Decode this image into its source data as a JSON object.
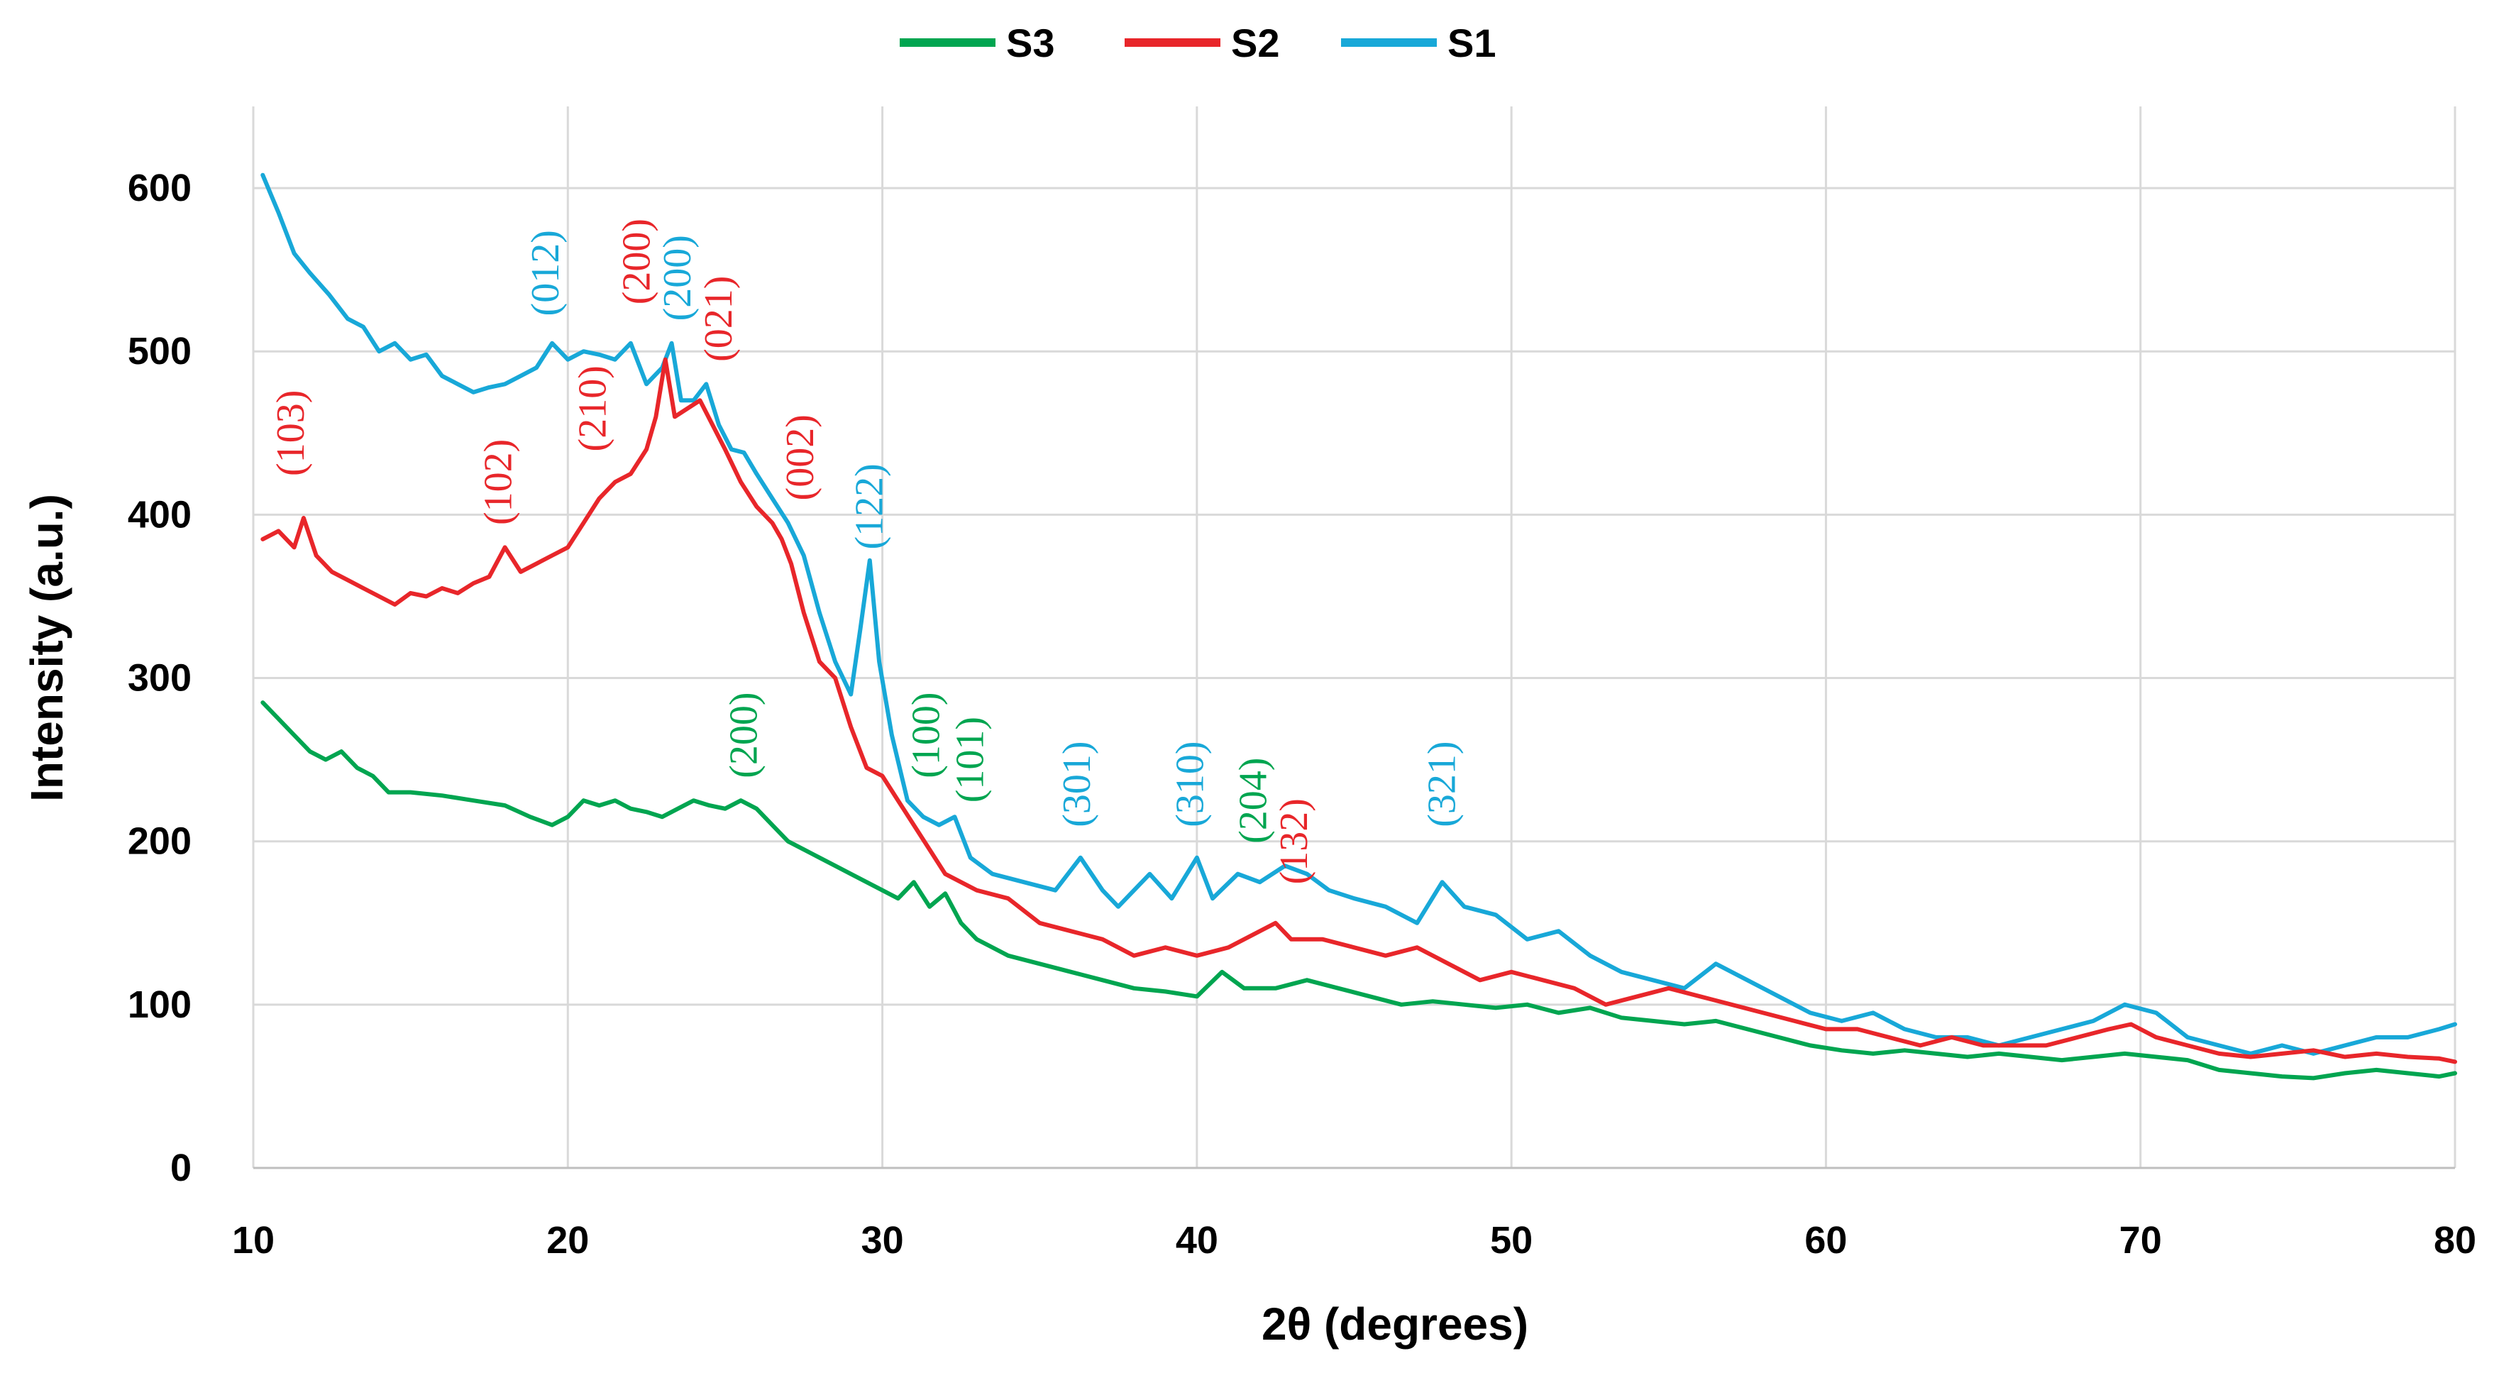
{
  "chart_data": {
    "type": "line",
    "title": "",
    "xlabel": "2θ (degrees)",
    "ylabel": "Intensity (a.u.)",
    "xlim": [
      10,
      80
    ],
    "ylim": [
      0,
      650
    ],
    "xticks": [
      10,
      20,
      30,
      40,
      50,
      60,
      70,
      80
    ],
    "yticks": [
      0,
      100,
      200,
      300,
      400,
      500,
      600
    ],
    "xtick_labels": [
      "10",
      "20",
      "30",
      "40",
      "50",
      "60",
      "70",
      "80"
    ],
    "ytick_labels": [
      "0",
      "100",
      "200",
      "300",
      "400",
      "500",
      "600"
    ],
    "grid": true,
    "legend_position": "top-center",
    "legend": [
      {
        "name": "S3",
        "color": "#00a550"
      },
      {
        "name": "S2",
        "color": "#e8262a"
      },
      {
        "name": "S1",
        "color": "#18a8d8"
      }
    ],
    "series": [
      {
        "name": "S1",
        "color": "#18a8d8",
        "x": [
          10.3,
          10.8,
          11.3,
          11.8,
          12.4,
          13.0,
          13.5,
          14.0,
          14.5,
          15.0,
          15.5,
          16.0,
          16.5,
          17.0,
          17.5,
          18.0,
          18.5,
          19.0,
          19.5,
          20.0,
          20.5,
          21.0,
          21.5,
          22.0,
          22.5,
          23.0,
          23.3,
          23.6,
          24.0,
          24.4,
          24.8,
          25.2,
          25.6,
          26.0,
          26.5,
          27.0,
          27.5,
          28.0,
          28.5,
          29.0,
          29.3,
          29.6,
          29.9,
          30.3,
          30.8,
          31.3,
          31.8,
          32.3,
          32.8,
          33.5,
          34.5,
          35.5,
          36.3,
          37.0,
          37.5,
          38.5,
          39.2,
          40.0,
          40.5,
          41.3,
          42.0,
          42.8,
          43.5,
          44.2,
          45.0,
          46.0,
          47.0,
          47.8,
          48.5,
          49.5,
          50.5,
          51.5,
          52.5,
          53.5,
          54.5,
          55.5,
          56.5,
          57.5,
          58.5,
          59.5,
          60.5,
          61.5,
          62.5,
          63.5,
          64.5,
          65.5,
          66.5,
          67.5,
          68.5,
          69.5,
          70.5,
          71.5,
          72.5,
          73.5,
          74.5,
          75.5,
          76.5,
          77.5,
          78.5,
          79.5,
          80.0
        ],
        "y": [
          608,
          585,
          560,
          548,
          535,
          520,
          515,
          500,
          505,
          495,
          498,
          485,
          480,
          475,
          478,
          480,
          485,
          490,
          505,
          495,
          500,
          498,
          495,
          505,
          480,
          490,
          505,
          470,
          470,
          480,
          455,
          440,
          438,
          425,
          410,
          395,
          375,
          340,
          310,
          290,
          330,
          372,
          310,
          265,
          225,
          215,
          210,
          215,
          190,
          180,
          175,
          170,
          190,
          170,
          160,
          180,
          165,
          190,
          165,
          180,
          175,
          185,
          180,
          170,
          165,
          160,
          150,
          175,
          160,
          155,
          140,
          145,
          130,
          120,
          115,
          110,
          125,
          115,
          105,
          95,
          90,
          95,
          85,
          80,
          80,
          75,
          80,
          85,
          90,
          100,
          95,
          80,
          75,
          70,
          75,
          70,
          75,
          80,
          80,
          85,
          88
        ]
      },
      {
        "name": "S2",
        "color": "#e8262a",
        "x": [
          10.3,
          10.8,
          11.3,
          11.6,
          12.0,
          12.5,
          13.0,
          13.5,
          14.0,
          14.5,
          15.0,
          15.5,
          16.0,
          16.5,
          17.0,
          17.5,
          18.0,
          18.5,
          19.0,
          19.5,
          20.0,
          20.5,
          21.0,
          21.5,
          22.0,
          22.5,
          22.8,
          23.1,
          23.4,
          23.8,
          24.2,
          24.6,
          25.0,
          25.5,
          26.0,
          26.5,
          26.8,
          27.1,
          27.5,
          28.0,
          28.5,
          29.0,
          29.5,
          30.0,
          30.5,
          31.0,
          31.5,
          32.0,
          32.5,
          33.0,
          34.0,
          35.0,
          36.0,
          37.0,
          38.0,
          39.0,
          40.0,
          41.0,
          42.0,
          42.5,
          43.0,
          44.0,
          45.0,
          46.0,
          47.0,
          48.0,
          49.0,
          50.0,
          51.0,
          52.0,
          53.0,
          54.0,
          55.0,
          56.0,
          57.0,
          58.0,
          59.0,
          60.0,
          61.0,
          62.0,
          63.0,
          64.0,
          65.0,
          66.0,
          67.0,
          68.0,
          69.0,
          69.7,
          70.5,
          71.5,
          72.5,
          73.5,
          74.5,
          75.5,
          76.5,
          77.5,
          78.5,
          79.5,
          80.0
        ],
        "y": [
          385,
          390,
          380,
          398,
          375,
          365,
          360,
          355,
          350,
          345,
          352,
          350,
          355,
          352,
          358,
          362,
          380,
          365,
          370,
          375,
          380,
          395,
          410,
          420,
          425,
          440,
          460,
          495,
          460,
          465,
          470,
          455,
          440,
          420,
          405,
          395,
          385,
          370,
          340,
          310,
          300,
          270,
          245,
          240,
          225,
          210,
          195,
          180,
          175,
          170,
          165,
          150,
          145,
          140,
          130,
          135,
          130,
          135,
          145,
          150,
          140,
          140,
          135,
          130,
          135,
          125,
          115,
          120,
          115,
          110,
          100,
          105,
          110,
          105,
          100,
          95,
          90,
          85,
          85,
          80,
          75,
          80,
          75,
          75,
          75,
          80,
          85,
          88,
          80,
          75,
          70,
          68,
          70,
          72,
          68,
          70,
          68,
          67,
          65
        ]
      },
      {
        "name": "S3",
        "color": "#00a550",
        "x": [
          10.3,
          10.8,
          11.3,
          11.8,
          12.3,
          12.8,
          13.3,
          13.8,
          14.3,
          15.0,
          16.0,
          17.0,
          18.0,
          18.8,
          19.5,
          20.0,
          20.5,
          21.0,
          21.5,
          22.0,
          22.5,
          23.0,
          23.5,
          24.0,
          24.5,
          25.0,
          25.5,
          26.0,
          26.5,
          27.0,
          27.5,
          28.0,
          28.5,
          29.0,
          29.5,
          30.0,
          30.5,
          31.0,
          31.5,
          32.0,
          32.5,
          33.0,
          34.0,
          35.0,
          36.0,
          37.0,
          38.0,
          39.0,
          40.0,
          40.8,
          41.5,
          42.5,
          43.5,
          44.5,
          45.5,
          46.5,
          47.5,
          48.5,
          49.5,
          50.5,
          51.5,
          52.5,
          53.5,
          54.5,
          55.5,
          56.5,
          57.5,
          58.5,
          59.5,
          60.5,
          61.5,
          62.5,
          63.5,
          64.5,
          65.5,
          66.5,
          67.5,
          68.5,
          69.5,
          70.5,
          71.5,
          72.5,
          73.5,
          74.5,
          75.5,
          76.5,
          77.5,
          78.5,
          79.5,
          80.0
        ],
        "y": [
          285,
          275,
          265,
          255,
          250,
          255,
          245,
          240,
          230,
          230,
          228,
          225,
          222,
          215,
          210,
          215,
          225,
          222,
          225,
          220,
          218,
          215,
          220,
          225,
          222,
          220,
          225,
          220,
          210,
          200,
          195,
          190,
          185,
          180,
          175,
          170,
          165,
          175,
          160,
          168,
          150,
          140,
          130,
          125,
          120,
          115,
          110,
          108,
          105,
          120,
          110,
          110,
          115,
          110,
          105,
          100,
          102,
          100,
          98,
          100,
          95,
          98,
          92,
          90,
          88,
          90,
          85,
          80,
          75,
          72,
          70,
          72,
          70,
          68,
          70,
          68,
          66,
          68,
          70,
          68,
          66,
          60,
          58,
          56,
          55,
          58,
          60,
          58,
          56,
          58
        ]
      }
    ],
    "annotations": [
      {
        "text": "(103)",
        "x": 11.6,
        "y": 450,
        "color": "#e8262a"
      },
      {
        "text": "(102)",
        "x": 18.2,
        "y": 420,
        "color": "#e8262a"
      },
      {
        "text": "(012)",
        "x": 19.7,
        "y": 548,
        "color": "#18a8d8"
      },
      {
        "text": "(210)",
        "x": 21.2,
        "y": 465,
        "color": "#e8262a"
      },
      {
        "text": "(200)",
        "x": 22.6,
        "y": 555,
        "color": "#e8262a"
      },
      {
        "text": "(200)",
        "x": 23.9,
        "y": 545,
        "color": "#18a8d8"
      },
      {
        "text": "(021)",
        "x": 25.2,
        "y": 520,
        "color": "#e8262a"
      },
      {
        "text": "(002)",
        "x": 27.8,
        "y": 435,
        "color": "#e8262a"
      },
      {
        "text": "(122)",
        "x": 30.0,
        "y": 405,
        "color": "#18a8d8"
      },
      {
        "text": "(200)",
        "x": 26.0,
        "y": 265,
        "color": "#00a550"
      },
      {
        "text": "(100)",
        "x": 31.8,
        "y": 265,
        "color": "#00a550"
      },
      {
        "text": "(101)",
        "x": 33.2,
        "y": 250,
        "color": "#00a550"
      },
      {
        "text": "(301)",
        "x": 36.6,
        "y": 235,
        "color": "#18a8d8"
      },
      {
        "text": "(310)",
        "x": 40.2,
        "y": 235,
        "color": "#18a8d8"
      },
      {
        "text": "(204)",
        "x": 42.2,
        "y": 225,
        "color": "#00a550"
      },
      {
        "text": "(132)",
        "x": 43.5,
        "y": 200,
        "color": "#e8262a"
      },
      {
        "text": "(321)",
        "x": 48.2,
        "y": 235,
        "color": "#18a8d8"
      }
    ]
  }
}
